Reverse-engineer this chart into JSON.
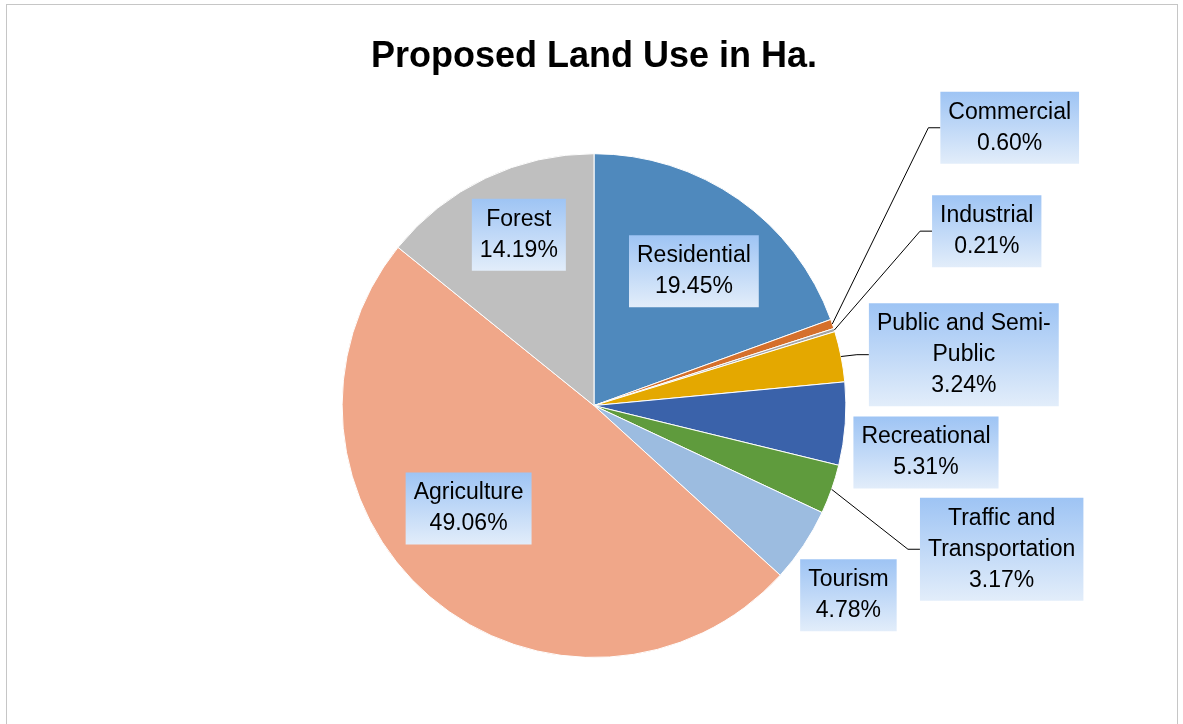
{
  "chart_data": {
    "type": "pie",
    "title": "Proposed Land Use in Ha.",
    "categories": [
      "Residential",
      "Commercial",
      "Industrial",
      "Public and Semi-Public",
      "Recreational",
      "Traffic and Transportation",
      "Tourism",
      "Agriculture",
      "Forest"
    ],
    "values": [
      19.45,
      0.6,
      0.21,
      3.24,
      5.31,
      3.17,
      4.78,
      49.06,
      14.19
    ],
    "colors": [
      "#4f89bd",
      "#d5702c",
      "#a5a5a5",
      "#e4a800",
      "#3a62aa",
      "#5f9b3d",
      "#9cbce0",
      "#f0a789",
      "#bfbfbf"
    ],
    "value_labels": [
      "19.45%",
      "0.60%",
      "0.21%",
      "3.24%",
      "5.31%",
      "3.17%",
      "4.78%",
      "49.06%",
      "14.19%"
    ]
  }
}
